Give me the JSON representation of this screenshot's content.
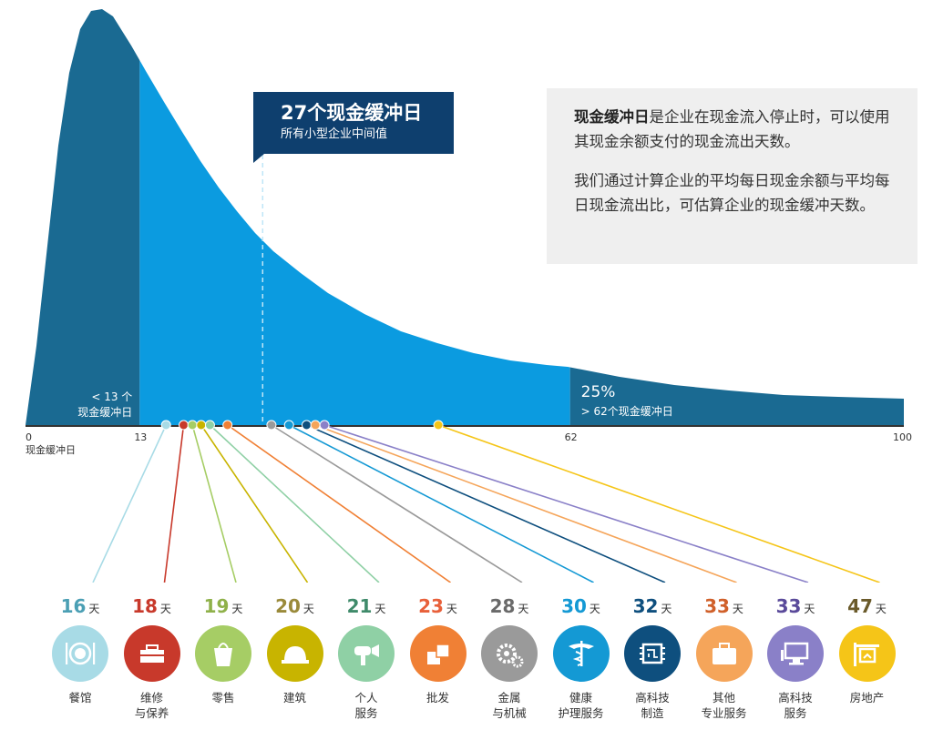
{
  "chart_data": {
    "type": "area",
    "xlim": [
      0,
      100
    ],
    "x_ticks": [
      "0",
      "13",
      "62",
      "100"
    ],
    "x_axis_label": "现金缓冲日",
    "regions": [
      {
        "label": "< 13 个\n现金缓冲日",
        "from": 0,
        "to": 13,
        "color": "#1a6a92"
      },
      {
        "label": "",
        "from": 13,
        "to": 62,
        "color": "#0b9be0"
      },
      {
        "label": "> 62个现金缓冲日",
        "pct": "25%",
        "from": 62,
        "to": 100,
        "color": "#1a6a92"
      }
    ],
    "median": {
      "value": 27,
      "title": "27个现金缓冲日",
      "subtitle": "所有小型企业中间值"
    },
    "industries": [
      {
        "name": "餐馆",
        "days": 16,
        "color": "#a8dbe6",
        "text_color": "#4b9fb4"
      },
      {
        "name": "维修\n与保养",
        "days": 18,
        "color": "#c8392b",
        "text_color": "#c8392b"
      },
      {
        "name": "零售",
        "days": 19,
        "color": "#a6cd65",
        "text_color": "#8fb14a"
      },
      {
        "name": "建筑",
        "days": 20,
        "color": "#c8b400",
        "text_color": "#9a8a3a"
      },
      {
        "name": "个人\n服务",
        "days": 21,
        "color": "#8fd0a5",
        "text_color": "#3f8a6a"
      },
      {
        "name": "批发",
        "days": 23,
        "color": "#f08035",
        "text_color": "#e8603a"
      },
      {
        "name": "金属\n与机械",
        "days": 28,
        "color": "#9a9a9a",
        "text_color": "#6a6a6a"
      },
      {
        "name": "健康\n护理服务",
        "days": 30,
        "color": "#1499d4",
        "text_color": "#1499d4"
      },
      {
        "name": "高科技\n制造",
        "days": 32,
        "color": "#0e4f7e",
        "text_color": "#0e4f7e"
      },
      {
        "name": "其他\n专业服务",
        "days": 33,
        "color": "#f5a55a",
        "text_color": "#d0602a"
      },
      {
        "name": "高科技\n服务",
        "days": 33,
        "color": "#8a80c8",
        "text_color": "#5a4a9a"
      },
      {
        "name": "房地产",
        "days": 47,
        "color": "#f5c518",
        "text_color": "#6a5a2a"
      }
    ],
    "day_unit": "天"
  },
  "infobox": {
    "p1_bold": "现金缓冲日",
    "p1_rest": "是企业在现金流入停止时，可以使用其现金余额支付的现金流出天数。",
    "p2": "我们通过计算企业的平均每日现金余额与平均每日现金流出比，可估算企业的现金缓冲天数。"
  },
  "icons": [
    "plate-utensils-icon",
    "toolbox-icon",
    "shopping-bag-icon",
    "hard-hat-icon",
    "hairdryer-icon",
    "boxes-icon",
    "gears-icon",
    "caduceus-icon",
    "circuit-chip-icon",
    "briefcase-icon",
    "computer-icon",
    "house-sign-icon"
  ]
}
